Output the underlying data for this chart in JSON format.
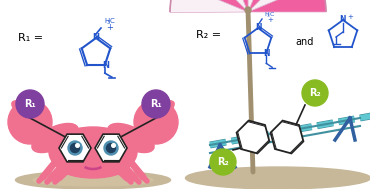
{
  "bg_color": "#ffffff",
  "crab_body_color": "#F07090",
  "crab_r_ball_color": "#8040A0",
  "crab_r_text": "R₁",
  "sand_color": "#C8B89A",
  "sand_color2": "#D0C0A0",
  "naphthalene_color": "#222222",
  "bench_color": "#60C8D0",
  "bench_dark": "#4090A0",
  "bench_leg_color": "#3060A0",
  "umbrella_pink": "#F060A0",
  "umbrella_white": "#F8F0F4",
  "umbrella_pole": "#A09070",
  "r2_ball_color": "#88BB22",
  "r2_text": "R₂",
  "chem_color": "#2255CC",
  "r1_label": "R₁ =",
  "r2_label": "R₂ =",
  "and_text": "and",
  "eye_pupil": "#204060",
  "eye_iris": "#3070A0",
  "smile_color": "#CC4488"
}
